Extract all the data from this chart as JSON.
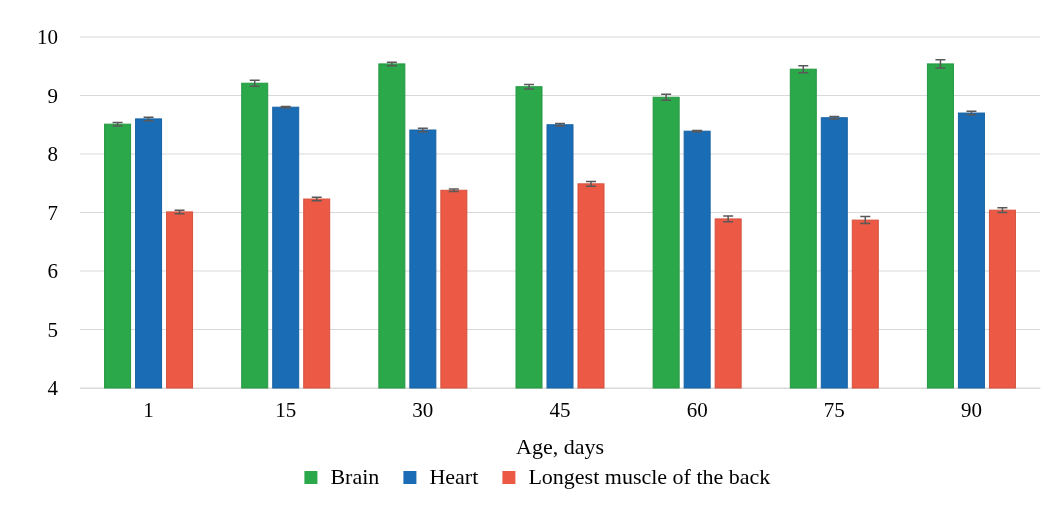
{
  "chart_data": {
    "type": "bar",
    "xlabel": "Age, days",
    "categories": [
      "1",
      "15",
      "30",
      "45",
      "60",
      "75",
      "90"
    ],
    "series": [
      {
        "name": "Brain",
        "color": "#2aa84a",
        "values": [
          8.51,
          9.21,
          9.54,
          9.15,
          8.97,
          9.45,
          9.54
        ],
        "errors": [
          0.03,
          0.05,
          0.03,
          0.04,
          0.05,
          0.06,
          0.07
        ]
      },
      {
        "name": "Heart",
        "color": "#1a6db5",
        "values": [
          8.6,
          8.8,
          8.41,
          8.5,
          8.39,
          8.62,
          8.7
        ],
        "errors": [
          0.03,
          0.01,
          0.03,
          0.02,
          0.01,
          0.02,
          0.03
        ]
      },
      {
        "name": "Longest muscle of the back",
        "color": "#ec5a45",
        "values": [
          7.01,
          7.23,
          7.38,
          7.49,
          6.89,
          6.87,
          7.04
        ],
        "errors": [
          0.03,
          0.03,
          0.02,
          0.04,
          0.05,
          0.06,
          0.04
        ]
      }
    ],
    "ylim": [
      4,
      10
    ],
    "yticks": [
      4,
      5,
      6,
      7,
      8,
      9,
      10
    ],
    "grid": "y",
    "legend": "bottom"
  }
}
